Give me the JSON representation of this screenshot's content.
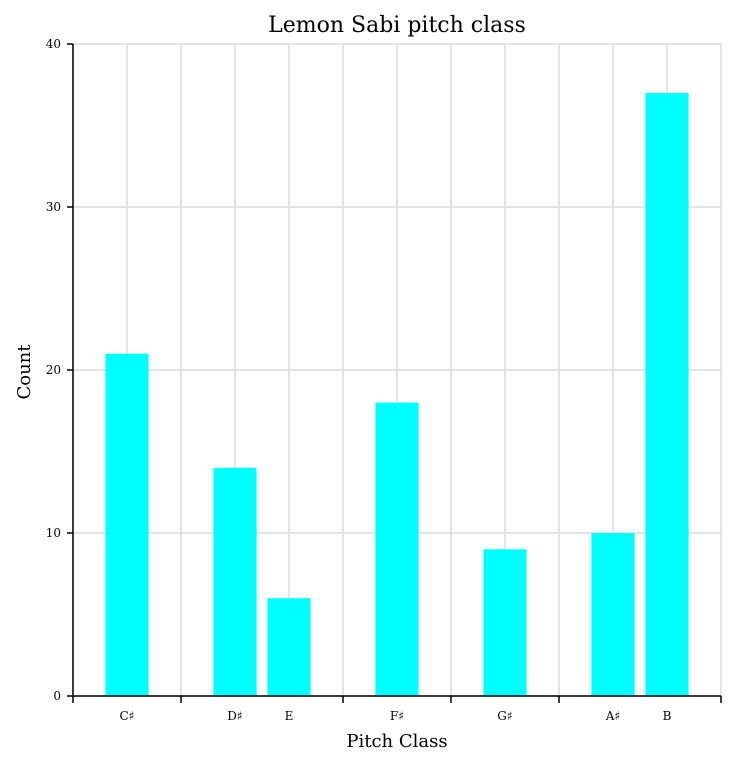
{
  "chart_data": {
    "type": "bar",
    "title": "Lemon Sabi pitch class",
    "xlabel": "Pitch Class",
    "ylabel": "Count",
    "categories": [
      "C♯",
      "D♯",
      "E",
      "F♯",
      "G♯",
      "A♯",
      "B"
    ],
    "x": [
      1,
      3,
      4,
      6,
      8,
      10,
      11
    ],
    "values": [
      21,
      14,
      6,
      18,
      9,
      10,
      37
    ],
    "xlim": [
      0,
      12
    ],
    "ylim": [
      0,
      40
    ],
    "yticks": [
      0,
      10,
      20,
      30,
      40
    ],
    "minor_xticks": [
      0,
      2,
      5,
      7,
      9,
      12
    ],
    "grid": true,
    "bar_color": "#00ffff"
  }
}
